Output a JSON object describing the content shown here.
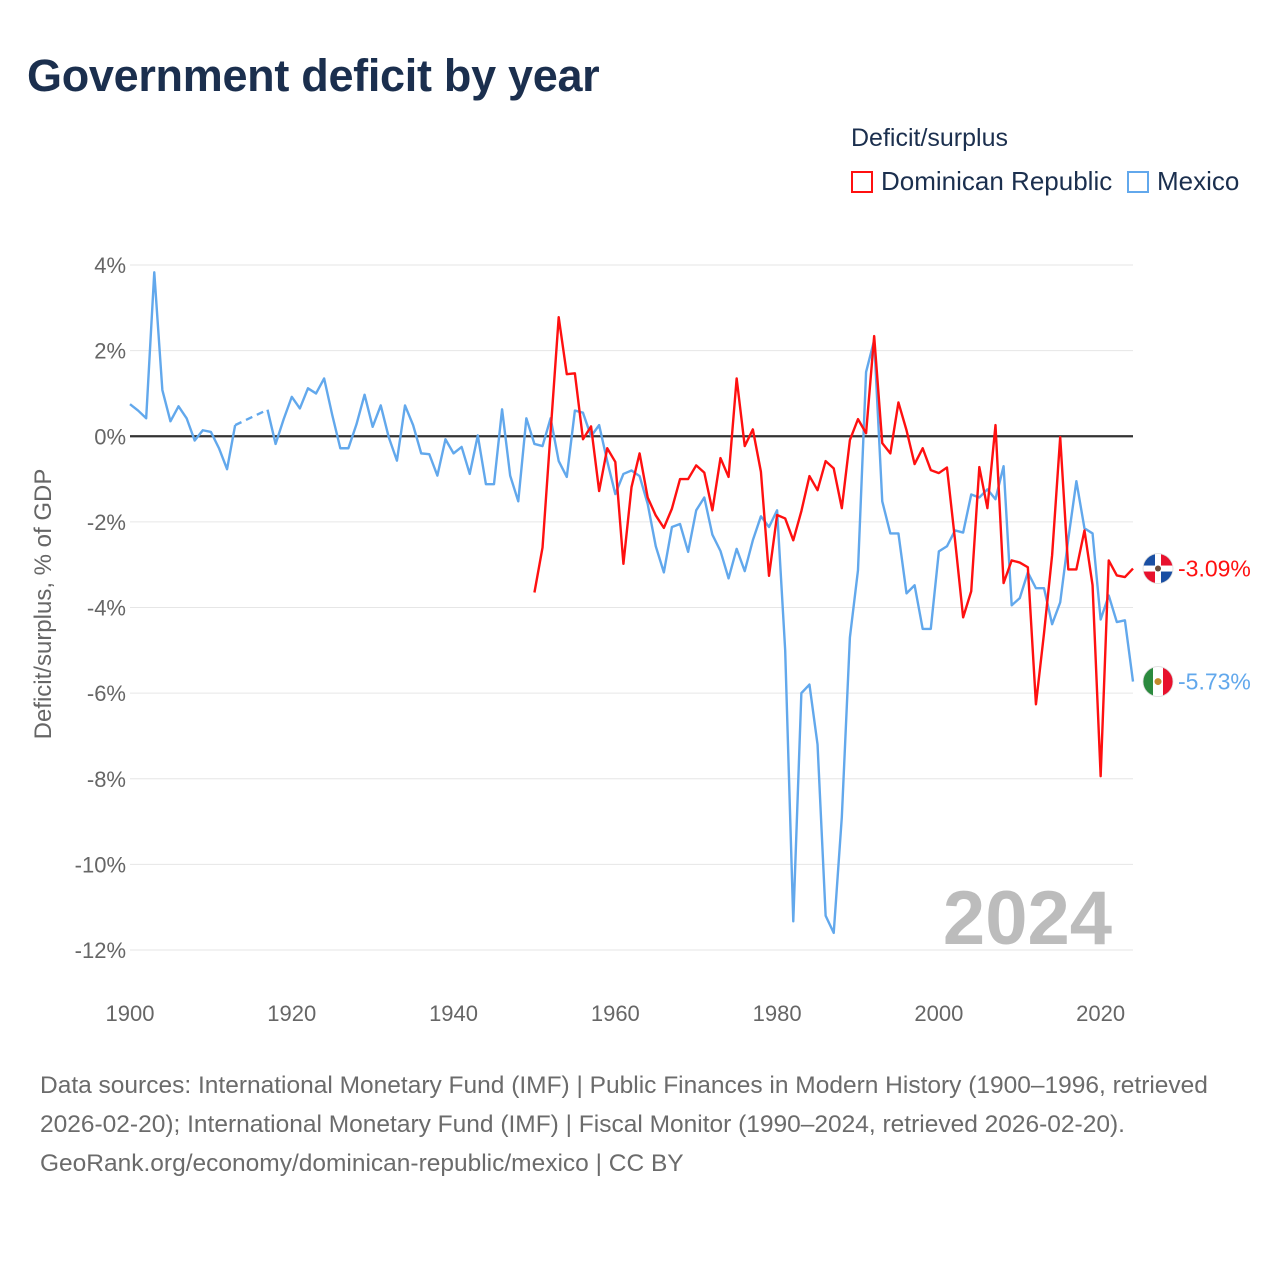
{
  "title": "Government deficit by year",
  "legend": {
    "title": "Deficit/surplus",
    "items": [
      {
        "label": "Dominican Republic",
        "color": "#ff1010"
      },
      {
        "label": "Mexico",
        "color": "#62a8ec"
      }
    ]
  },
  "year_watermark": "2024",
  "footer": {
    "sources": "Data sources: International Monetary Fund (IMF) | Public Finances in Modern History (1900–1996, retrieved 2026-02-20); International Monetary Fund (IMF) | Fiscal Monitor (1990–2024, retrieved 2026-02-20).",
    "attribution": "GeoRank.org/economy/dominican-republic/mexico | CC BY"
  },
  "chart_data": {
    "type": "line",
    "title": "Government deficit by year",
    "xlabel": "",
    "ylabel": "Deficit/surplus, % of GDP",
    "xlim": [
      1900,
      2024
    ],
    "ylim": [
      -12,
      4
    ],
    "x_ticks": [
      1900,
      1920,
      1940,
      1960,
      1980,
      2000,
      2020
    ],
    "x_tick_labels": [
      "1900",
      "1920",
      "1940",
      "1960",
      "1980",
      "2000",
      "2020"
    ],
    "y_ticks": [
      4,
      2,
      0,
      -2,
      -4,
      -6,
      -8,
      -10,
      -12
    ],
    "y_tick_labels": [
      "4%",
      "2%",
      "0%",
      "-2%",
      "-4%",
      "-6%",
      "-8%",
      "-10%",
      "-12%"
    ],
    "grid": true,
    "legend_position": "top-right",
    "series": [
      {
        "name": "Dominican Republic",
        "color": "#ff1010",
        "start_year": 1950,
        "end_label": "-3.09%",
        "values": [
          -3.65,
          -2.6,
          0.1,
          2.78,
          1.45,
          1.47,
          -0.07,
          0.23,
          -1.28,
          -0.28,
          -0.6,
          -2.98,
          -1.19,
          -0.4,
          -1.43,
          -1.85,
          -2.14,
          -1.69,
          -1.0,
          -1.0,
          -0.68,
          -0.85,
          -1.73,
          -0.51,
          -0.95,
          1.35,
          -0.23,
          0.16,
          -0.83,
          -3.26,
          -1.84,
          -1.92,
          -2.43,
          -1.75,
          -0.93,
          -1.26,
          -0.58,
          -0.75,
          -1.68,
          -0.09,
          0.4,
          0.07,
          2.34,
          -0.16,
          -0.4,
          0.79,
          0.14,
          -0.65,
          -0.28,
          -0.79,
          -0.86,
          -0.73,
          -2.43,
          -4.23,
          -3.62,
          -0.72,
          -1.68,
          0.26,
          -3.43,
          -2.9,
          -2.95,
          -3.06,
          -6.26,
          -4.6,
          -2.78,
          -0.02,
          -3.11,
          -3.11,
          -2.2,
          -3.48,
          -7.94,
          -2.9,
          -3.25,
          -3.29,
          -3.09
        ]
      },
      {
        "name": "Mexico",
        "color": "#62a8ec",
        "start_year": 1900,
        "end_label": "-5.73%",
        "values": [
          0.75,
          0.6,
          0.42,
          3.83,
          1.08,
          0.35,
          0.7,
          0.42,
          -0.1,
          0.14,
          0.1,
          -0.28,
          -0.77,
          0.26,
          null,
          null,
          null,
          0.62,
          -0.18,
          0.4,
          0.92,
          0.65,
          1.12,
          1.0,
          1.35,
          0.5,
          -0.28,
          -0.28,
          0.28,
          0.97,
          0.22,
          0.72,
          -0.03,
          -0.57,
          0.72,
          0.26,
          -0.4,
          -0.42,
          -0.92,
          -0.07,
          -0.4,
          -0.25,
          -0.88,
          0.02,
          -1.12,
          -1.12,
          0.63,
          -0.92,
          -1.52,
          0.42,
          -0.18,
          -0.23,
          0.42,
          -0.58,
          -0.95,
          0.6,
          0.55,
          0.0,
          0.26,
          -0.58,
          -1.35,
          -0.88,
          -0.8,
          -0.93,
          -1.58,
          -2.57,
          -3.18,
          -2.12,
          -2.05,
          -2.7,
          -1.73,
          -1.43,
          -2.3,
          -2.68,
          -3.32,
          -2.63,
          -3.15,
          -2.43,
          -1.87,
          -2.12,
          -1.73,
          -5.0,
          -11.33,
          -6.0,
          -5.8,
          -7.2,
          -11.2,
          -11.6,
          -8.9,
          -4.7,
          -3.13,
          1.5,
          2.24,
          -1.52,
          -2.27,
          -2.27,
          -3.67,
          -3.48,
          -4.5,
          -4.5,
          -2.69,
          -2.57,
          -2.2,
          -2.25,
          -1.36,
          -1.43,
          -1.24,
          -1.47,
          -0.7,
          -3.95,
          -3.78,
          -3.18,
          -3.55,
          -3.55,
          -4.39,
          -3.88,
          -2.4,
          -1.05,
          -2.15,
          -2.27,
          -4.28,
          -3.72,
          -4.34,
          -4.3,
          -5.73
        ]
      }
    ]
  }
}
